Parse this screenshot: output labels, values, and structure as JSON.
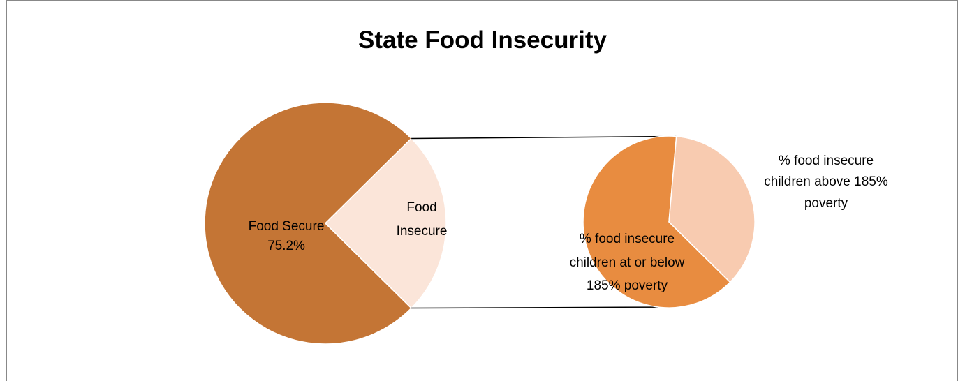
{
  "chart_data": {
    "type": "pie",
    "title": "State Food Insecurity",
    "main_pie": {
      "slices": [
        {
          "label": "Food Secure",
          "value_label": "75.2%",
          "value": 75.2,
          "color": "#C47535"
        },
        {
          "label": "Food Insecure",
          "value_label": "",
          "value": 24.8,
          "color": "#FBE5D9"
        }
      ]
    },
    "breakout_pie": {
      "slices": [
        {
          "label": "% food insecure children at or below 185% poverty",
          "value": 64,
          "color": "#E88C40"
        },
        {
          "label": "% food insecure children above 185% poverty",
          "value": 36,
          "color": "#F8CBB0"
        }
      ]
    },
    "labels": {
      "food_secure": "Food Secure",
      "food_secure_pct": "75.2%",
      "food_insecure_l1": "Food",
      "food_insecure_l2": "Insecure",
      "below_l1": "% food insecure",
      "below_l2": "children at or below",
      "below_l3": "185% poverty",
      "above_l1": "% food insecure",
      "above_l2": "children above 185%",
      "above_l3": "poverty"
    }
  }
}
